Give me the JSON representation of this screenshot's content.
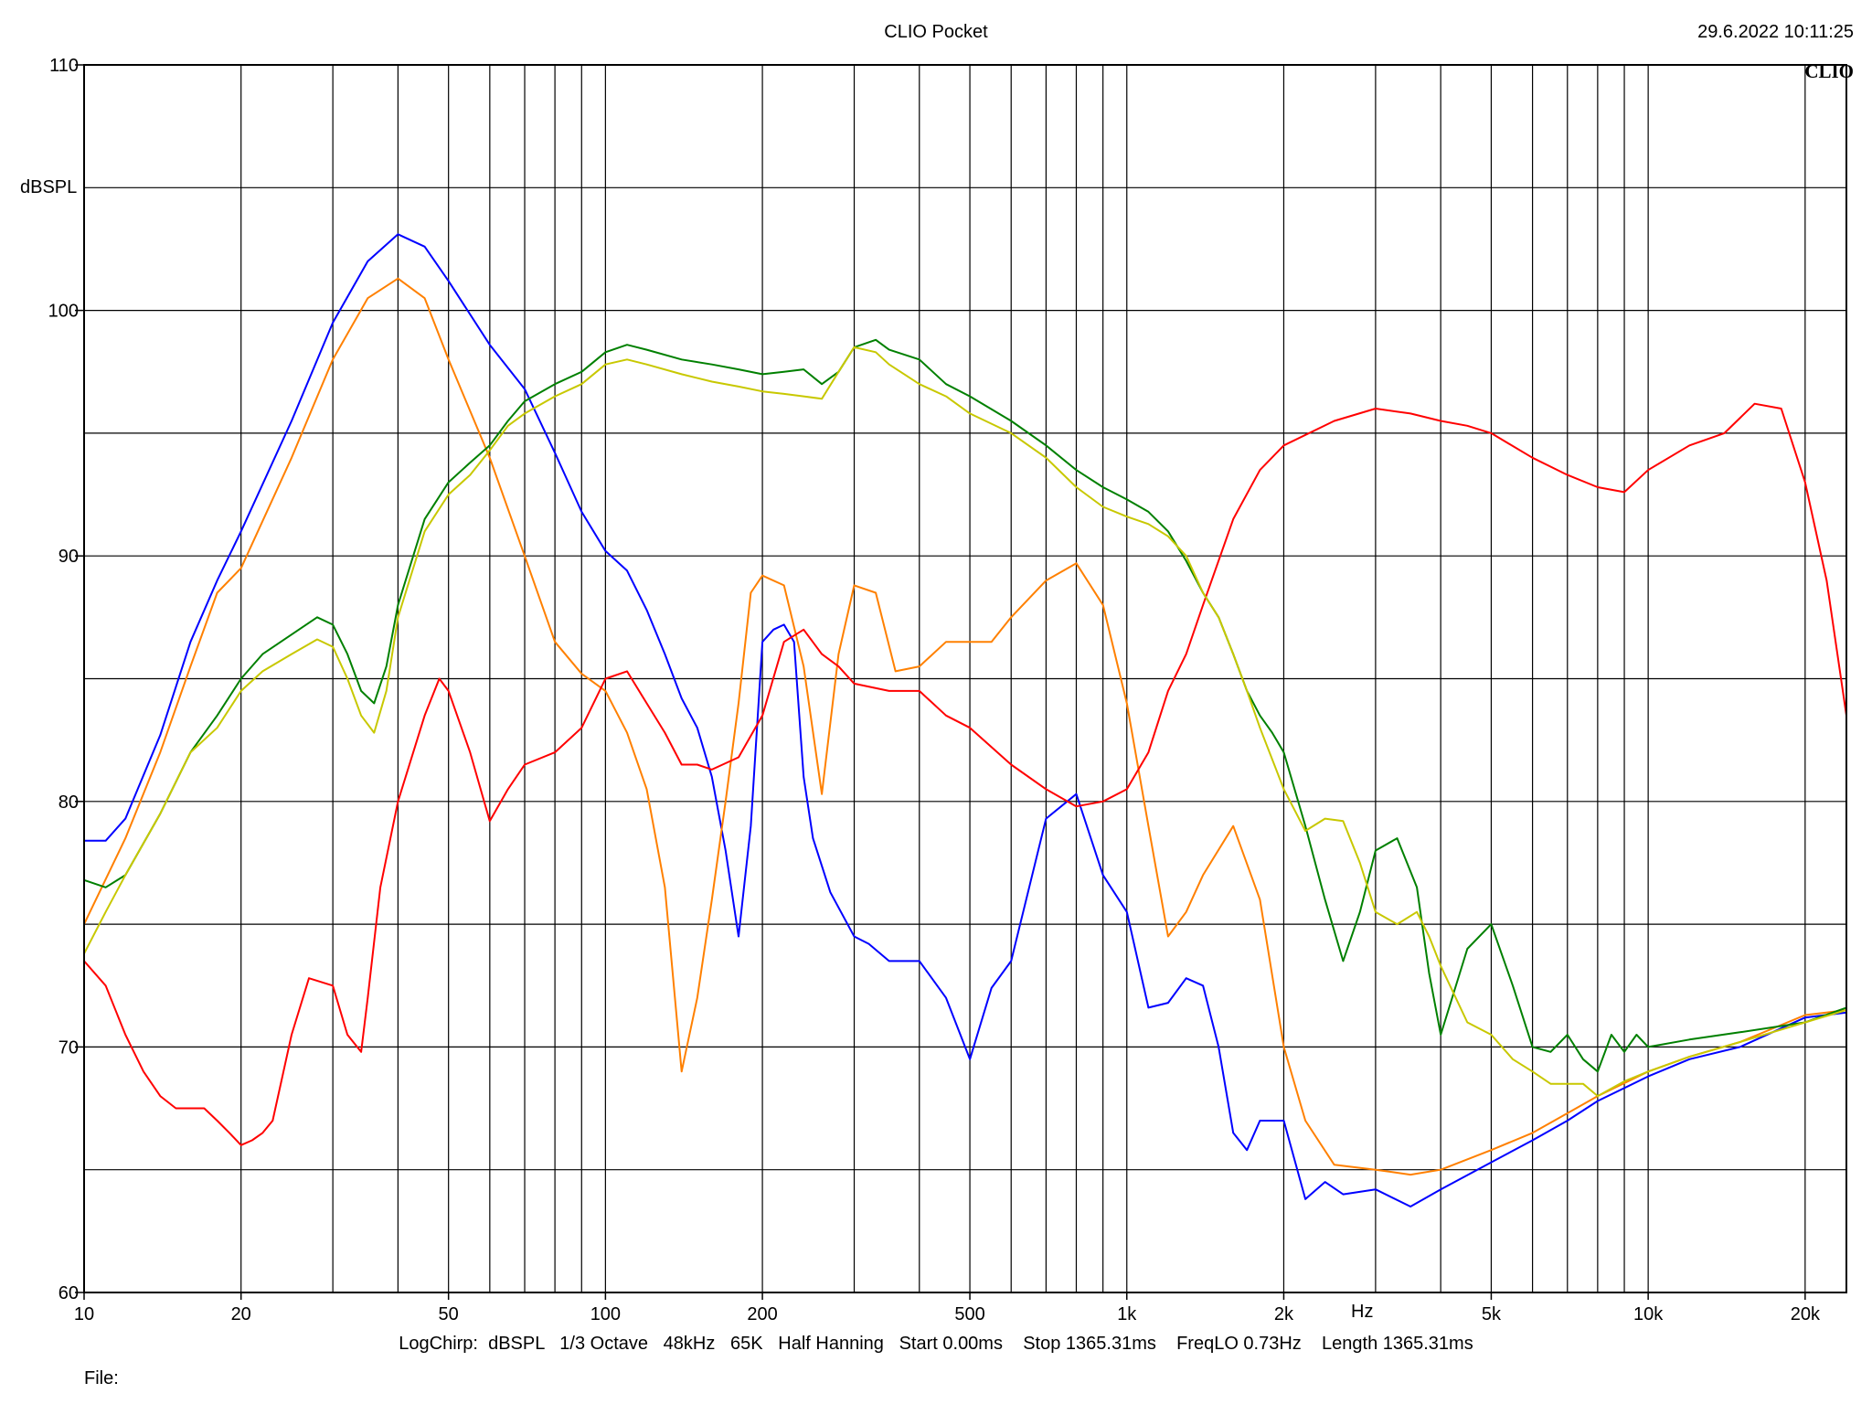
{
  "header": {
    "title": "CLIO Pocket",
    "timestamp": "29.6.2022 10:11:25",
    "logo": "CLIO"
  },
  "footer": {
    "settings": "LogChirp:  dBSPL   1/3 Octave   48kHz   65K   Half Hanning   Start 0.00ms    Stop 1365.31ms    FreqLO 0.73Hz    Length 1365.31ms",
    "file_label": "File:"
  },
  "chart_data": {
    "type": "line",
    "title": "CLIO Pocket",
    "xlabel": "Hz",
    "ylabel": "dBSPL",
    "x_scale": "log",
    "xlim": [
      10,
      24000
    ],
    "ylim": [
      60,
      110
    ],
    "x_ticks": [
      10,
      20,
      50,
      100,
      200,
      500,
      1000,
      2000,
      5000,
      10000,
      20000
    ],
    "x_tick_labels": [
      "10",
      "20",
      "50",
      "100",
      "200",
      "500",
      "1k",
      "2k",
      "5k",
      "10k",
      "20k"
    ],
    "y_ticks": [
      60,
      70,
      80,
      90,
      100,
      110
    ],
    "y_tick_labels": [
      "60",
      "70",
      "80",
      "90",
      "100",
      "110"
    ],
    "grid": true,
    "series": [
      {
        "color": "#0000ff",
        "x": [
          10,
          11,
          12,
          14,
          16,
          18,
          20,
          25,
          30,
          35,
          40,
          45,
          50,
          60,
          70,
          80,
          90,
          100,
          110,
          120,
          130,
          140,
          150,
          160,
          170,
          180,
          190,
          200,
          210,
          220,
          230,
          240,
          250,
          270,
          300,
          320,
          350,
          400,
          450,
          500,
          550,
          600,
          700,
          800,
          900,
          1000,
          1100,
          1200,
          1300,
          1400,
          1500,
          1600,
          1700,
          1800,
          2000,
          2200,
          2400,
          2600,
          3000,
          3500,
          4000,
          5000,
          6000,
          7000,
          8000,
          10000,
          12000,
          15000,
          20000,
          24000
        ],
        "y": [
          78.4,
          78.4,
          79.3,
          82.7,
          86.5,
          89.0,
          91.0,
          95.5,
          99.5,
          102.0,
          103.1,
          102.6,
          101.2,
          98.6,
          96.8,
          94.2,
          91.8,
          90.2,
          89.4,
          87.8,
          86.0,
          84.2,
          83.0,
          81.0,
          78.0,
          74.5,
          79.0,
          86.5,
          87.0,
          87.2,
          86.5,
          81.0,
          78.5,
          76.3,
          74.5,
          74.2,
          73.5,
          73.5,
          72.0,
          69.5,
          72.4,
          73.5,
          79.3,
          80.3,
          77.0,
          75.5,
          71.6,
          71.8,
          72.8,
          72.5,
          70.0,
          66.5,
          65.8,
          67.0,
          67.0,
          63.8,
          64.5,
          64.0,
          64.2,
          63.5,
          64.2,
          65.3,
          66.2,
          67.0,
          67.8,
          68.8,
          69.5,
          70.0,
          71.2,
          71.4
        ]
      },
      {
        "color": "#ff8000",
        "x": [
          10,
          12,
          14,
          16,
          18,
          20,
          25,
          30,
          35,
          40,
          45,
          50,
          60,
          70,
          80,
          90,
          100,
          110,
          120,
          130,
          140,
          150,
          160,
          170,
          180,
          190,
          200,
          220,
          240,
          260,
          280,
          300,
          330,
          360,
          400,
          450,
          500,
          550,
          600,
          700,
          800,
          900,
          1000,
          1100,
          1200,
          1300,
          1400,
          1600,
          1800,
          2000,
          2200,
          2500,
          3000,
          3500,
          4000,
          5000,
          6000,
          7000,
          8000,
          10000,
          12000,
          15000,
          20000,
          24000
        ],
        "y": [
          75.0,
          78.5,
          82.0,
          85.5,
          88.5,
          89.5,
          94.0,
          98.0,
          100.5,
          101.3,
          100.5,
          98.0,
          94.0,
          90.0,
          86.5,
          85.2,
          84.5,
          82.8,
          80.5,
          76.5,
          69.0,
          72.0,
          76.0,
          80.0,
          84.0,
          88.5,
          89.2,
          88.8,
          85.5,
          80.3,
          86.0,
          88.8,
          88.5,
          85.3,
          85.5,
          86.5,
          86.5,
          86.5,
          87.5,
          89.0,
          89.7,
          88.0,
          84.0,
          79.0,
          74.5,
          75.5,
          77.0,
          79.0,
          76.0,
          70.0,
          67.0,
          65.2,
          65.0,
          64.8,
          65.0,
          65.8,
          66.5,
          67.3,
          68.0,
          69.0,
          69.6,
          70.2,
          71.3,
          71.5
        ]
      },
      {
        "color": "#ff0000",
        "x": [
          10,
          11,
          12,
          13,
          14,
          15,
          16,
          17,
          18,
          19,
          20,
          21,
          22,
          23,
          25,
          27,
          30,
          32,
          34,
          35,
          37,
          40,
          45,
          48,
          50,
          55,
          60,
          65,
          70,
          80,
          90,
          100,
          110,
          120,
          130,
          140,
          150,
          160,
          180,
          200,
          220,
          240,
          260,
          280,
          300,
          350,
          400,
          450,
          500,
          600,
          700,
          800,
          900,
          1000,
          1100,
          1200,
          1300,
          1400,
          1600,
          1800,
          2000,
          2500,
          3000,
          3500,
          4000,
          4500,
          5000,
          6000,
          7000,
          8000,
          9000,
          10000,
          12000,
          14000,
          16000,
          18000,
          20000,
          22000,
          24000
        ],
        "y": [
          73.5,
          72.5,
          70.5,
          69.0,
          68.0,
          67.5,
          67.5,
          67.5,
          67.0,
          66.5,
          66.0,
          66.2,
          66.5,
          67.0,
          70.5,
          72.8,
          72.5,
          70.5,
          69.8,
          72.0,
          76.5,
          80.0,
          83.5,
          85.0,
          84.5,
          82.0,
          79.2,
          80.5,
          81.5,
          82.0,
          83.0,
          85.0,
          85.3,
          84.0,
          82.8,
          81.5,
          81.5,
          81.3,
          81.8,
          83.5,
          86.5,
          87.0,
          86.0,
          85.5,
          84.8,
          84.5,
          84.5,
          83.5,
          83.0,
          81.5,
          80.5,
          79.8,
          80.0,
          80.5,
          82.0,
          84.5,
          86.0,
          88.0,
          91.5,
          93.5,
          94.5,
          95.5,
          96.0,
          95.8,
          95.5,
          95.3,
          95.0,
          94.0,
          93.3,
          92.8,
          92.6,
          93.5,
          94.5,
          95.0,
          96.2,
          96.0,
          93.0,
          89.0,
          83.5
        ]
      },
      {
        "color": "#008000",
        "x": [
          10,
          11,
          12,
          14,
          16,
          18,
          20,
          22,
          25,
          28,
          30,
          32,
          34,
          36,
          38,
          40,
          45,
          50,
          55,
          60,
          65,
          70,
          80,
          90,
          100,
          110,
          120,
          140,
          160,
          180,
          200,
          220,
          240,
          260,
          280,
          300,
          330,
          350,
          400,
          450,
          500,
          600,
          700,
          800,
          900,
          1000,
          1100,
          1200,
          1300,
          1400,
          1500,
          1600,
          1700,
          1800,
          1900,
          2000,
          2200,
          2400,
          2600,
          2800,
          3000,
          3300,
          3600,
          3800,
          4000,
          4500,
          5000,
          5500,
          6000,
          6500,
          7000,
          7500,
          8000,
          8500,
          9000,
          9500,
          10000,
          12000,
          15000,
          20000,
          24000
        ],
        "y": [
          76.8,
          76.5,
          77.0,
          79.5,
          82.0,
          83.5,
          85.0,
          86.0,
          86.8,
          87.5,
          87.2,
          86.0,
          84.5,
          84.0,
          85.5,
          88.0,
          91.5,
          93.0,
          93.8,
          94.5,
          95.5,
          96.3,
          97.0,
          97.5,
          98.3,
          98.6,
          98.4,
          98.0,
          97.8,
          97.6,
          97.4,
          97.5,
          97.6,
          97.0,
          97.5,
          98.5,
          98.8,
          98.4,
          98.0,
          97.0,
          96.5,
          95.5,
          94.5,
          93.5,
          92.8,
          92.3,
          91.8,
          91.0,
          89.8,
          88.5,
          87.5,
          86.0,
          84.5,
          83.5,
          82.8,
          82.0,
          79.0,
          76.0,
          73.5,
          75.5,
          78.0,
          78.5,
          76.5,
          73.0,
          70.5,
          74.0,
          75.0,
          72.5,
          70.0,
          69.8,
          70.5,
          69.5,
          69.0,
          70.5,
          69.8,
          70.5,
          70.0,
          70.3,
          70.6,
          71.0,
          71.6
        ]
      },
      {
        "color": "#c8c800",
        "x": [
          10,
          11,
          12,
          14,
          16,
          18,
          20,
          22,
          25,
          28,
          30,
          32,
          34,
          36,
          38,
          40,
          45,
          50,
          55,
          60,
          65,
          70,
          80,
          90,
          100,
          110,
          120,
          140,
          160,
          180,
          200,
          220,
          240,
          260,
          280,
          300,
          330,
          350,
          400,
          450,
          500,
          600,
          700,
          800,
          900,
          1000,
          1100,
          1200,
          1300,
          1400,
          1500,
          1600,
          1700,
          1800,
          2000,
          2200,
          2400,
          2600,
          2800,
          3000,
          3300,
          3600,
          3800,
          4000,
          4500,
          5000,
          5500,
          6000,
          6500,
          7000,
          7500,
          8000,
          9000,
          10000,
          12000,
          15000,
          20000,
          24000
        ],
        "y": [
          73.8,
          75.5,
          77.0,
          79.5,
          82.0,
          83.0,
          84.5,
          85.3,
          86.0,
          86.6,
          86.3,
          85.0,
          83.5,
          82.8,
          84.5,
          87.5,
          91.0,
          92.5,
          93.3,
          94.3,
          95.3,
          95.8,
          96.5,
          97.0,
          97.8,
          98.0,
          97.8,
          97.4,
          97.1,
          96.9,
          96.7,
          96.6,
          96.5,
          96.4,
          97.5,
          98.5,
          98.3,
          97.8,
          97.0,
          96.5,
          95.8,
          95.0,
          94.0,
          92.8,
          92.0,
          91.6,
          91.3,
          90.8,
          90.0,
          88.5,
          87.5,
          86.0,
          84.5,
          83.0,
          80.5,
          78.8,
          79.3,
          79.2,
          77.5,
          75.5,
          75.0,
          75.5,
          74.5,
          73.3,
          71.0,
          70.5,
          69.5,
          69.0,
          68.5,
          68.5,
          68.5,
          68.0,
          68.6,
          69.0,
          69.6,
          70.2,
          71.0,
          71.5
        ]
      }
    ]
  }
}
